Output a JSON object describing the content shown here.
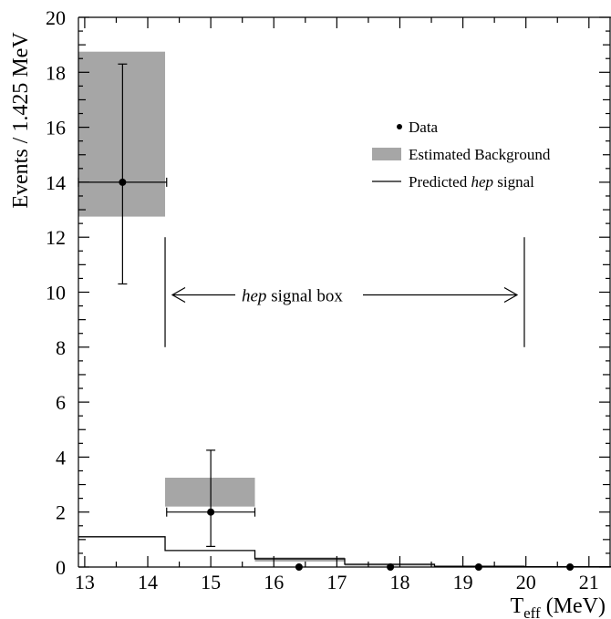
{
  "chart_data": {
    "type": "bar",
    "ylabel": "Events / 1.425 MeV",
    "xlabel": "T",
    "xlabel_sub": "eff",
    "xlabel_unit": "(MeV)",
    "xlim": [
      12.9,
      21.35
    ],
    "ylim": [
      0,
      20
    ],
    "x_ticks": [
      13,
      14,
      15,
      16,
      17,
      18,
      19,
      20,
      21
    ],
    "y_ticks": [
      0,
      2,
      4,
      6,
      8,
      10,
      12,
      14,
      16,
      18,
      20
    ],
    "grid": false,
    "legend_position": "top-right",
    "legend": {
      "data": "Data",
      "background": "Estimated Background",
      "signal_italic": "hep",
      "signal_rest": " signal",
      "signal_prefix": "Predicted "
    },
    "colors": {
      "background": "#a6a6a6",
      "data": "#000000",
      "signal": "#000000"
    },
    "bin_edges": [
      12.85,
      14.275,
      15.7,
      17.125,
      18.55,
      19.975,
      21.4
    ],
    "data": [
      {
        "x": 13.6,
        "y": 14.0,
        "yerr_low": 3.7,
        "yerr_high": 4.3,
        "xerr_low": 0.7,
        "xerr_high": 0.7
      },
      {
        "x": 15.0,
        "y": 2.0,
        "yerr_low": 1.25,
        "yerr_high": 2.25,
        "xerr_low": 0.7,
        "xerr_high": 0.7
      },
      {
        "x": 16.4,
        "y": 0
      },
      {
        "x": 17.85,
        "y": 0
      },
      {
        "x": 19.25,
        "y": 0
      },
      {
        "x": 20.7,
        "y": 0
      }
    ],
    "background_bands": [
      {
        "x0": 12.9,
        "x1": 14.275,
        "y0": 12.75,
        "y1": 18.75
      },
      {
        "x0": 14.275,
        "x1": 15.7,
        "y0": 2.2,
        "y1": 3.25
      },
      {
        "x0": 15.7,
        "x1": 17.125,
        "y0": 0.2,
        "y1": 0.35
      },
      {
        "x0": 17.125,
        "x1": 18.55,
        "y0": 0.05,
        "y1": 0.12
      },
      {
        "x0": 18.55,
        "x1": 19.975,
        "y0": 0.0,
        "y1": 0.04
      }
    ],
    "predicted_signal": [
      1.1,
      0.6,
      0.3,
      0.1,
      0.03,
      0.01
    ],
    "annotation": {
      "text_italic": "hep",
      "text_rest": " signal box",
      "x_from": 14.275,
      "x_to": 19.975,
      "y_arrow": 9.9,
      "y_lines": [
        8.0,
        12.0
      ]
    }
  }
}
